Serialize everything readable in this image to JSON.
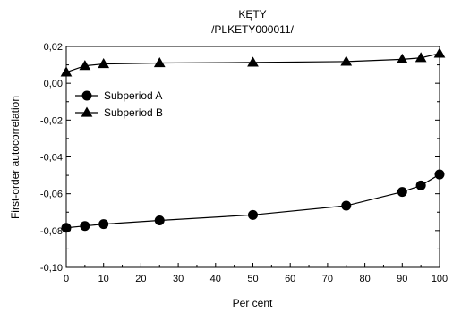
{
  "chart_data": {
    "type": "line",
    "title": "KĘTY",
    "subtitle": "/PLKETY000011/",
    "xlabel": "Per cent",
    "ylabel": "First-order autocorrelation",
    "xlim": [
      0,
      100
    ],
    "ylim": [
      -0.1,
      0.02
    ],
    "x_ticks": [
      "0",
      "10",
      "20",
      "30",
      "40",
      "50",
      "60",
      "70",
      "80",
      "90",
      "100"
    ],
    "y_ticks": [
      "-0,10",
      "-0,08",
      "-0,06",
      "-0,04",
      "-0,02",
      "0,00",
      "0,02"
    ],
    "grid": false,
    "legend_position": "upper-left",
    "x": [
      0,
      5,
      10,
      25,
      50,
      75,
      90,
      95,
      100
    ],
    "series": [
      {
        "name": "Subperiod A",
        "marker": "circle",
        "color": "#000000",
        "values": [
          -0.0785,
          -0.0775,
          -0.0765,
          -0.0745,
          -0.0715,
          -0.0665,
          -0.059,
          -0.0555,
          -0.0495
        ]
      },
      {
        "name": "Subperiod B",
        "marker": "triangle",
        "color": "#000000",
        "values": [
          0.006,
          0.0095,
          0.0105,
          0.011,
          0.0113,
          0.0118,
          0.013,
          0.0138,
          0.0162
        ]
      }
    ]
  }
}
